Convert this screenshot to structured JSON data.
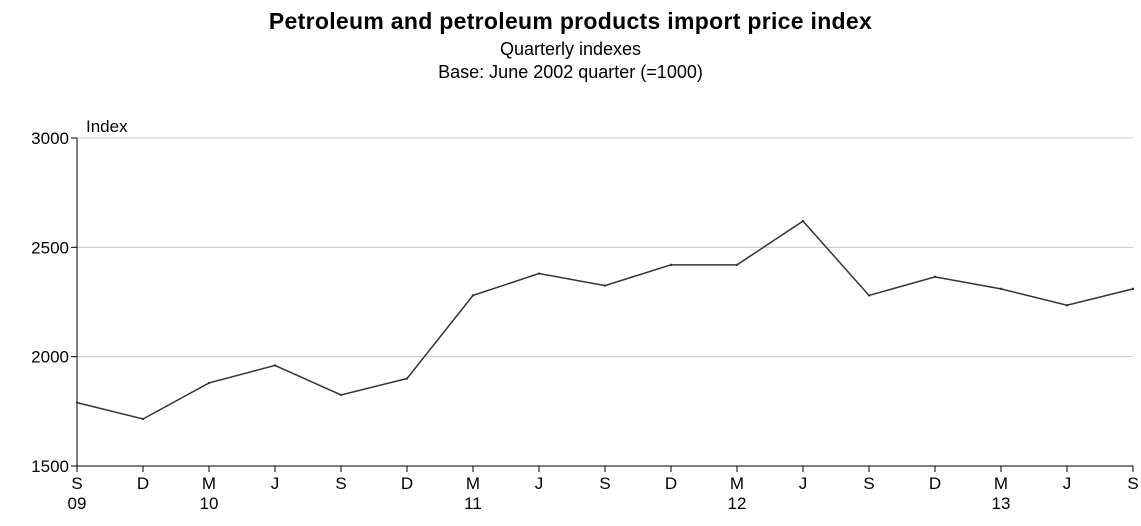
{
  "chart_data": {
    "type": "line",
    "title": "Petroleum and petroleum products import price index",
    "subtitle": "Quarterly  indexes",
    "subtitle2": "Base: June 2002 quarter (=1000)",
    "ylabel": "Index",
    "xlabel": "",
    "ylim": [
      1500,
      3000
    ],
    "yticks": [
      "3000",
      "2500",
      "2000",
      "1500"
    ],
    "grid": true,
    "categories": [
      "S",
      "D",
      "M",
      "J",
      "S",
      "D",
      "M",
      "J",
      "S",
      "D",
      "M",
      "J",
      "S",
      "D",
      "M",
      "J",
      "S"
    ],
    "year_labels": [
      "09",
      "",
      "10",
      "",
      "",
      "",
      "11",
      "",
      "",
      "",
      "12",
      "",
      "",
      "",
      "13",
      "",
      ""
    ],
    "series": [
      {
        "values": [
          1790,
          1715,
          1880,
          1960,
          1825,
          1900,
          2280,
          2380,
          2325,
          2420,
          2420,
          2620,
          2280,
          2365,
          2310,
          2235,
          2310
        ]
      }
    ],
    "line_color": "#333333"
  }
}
